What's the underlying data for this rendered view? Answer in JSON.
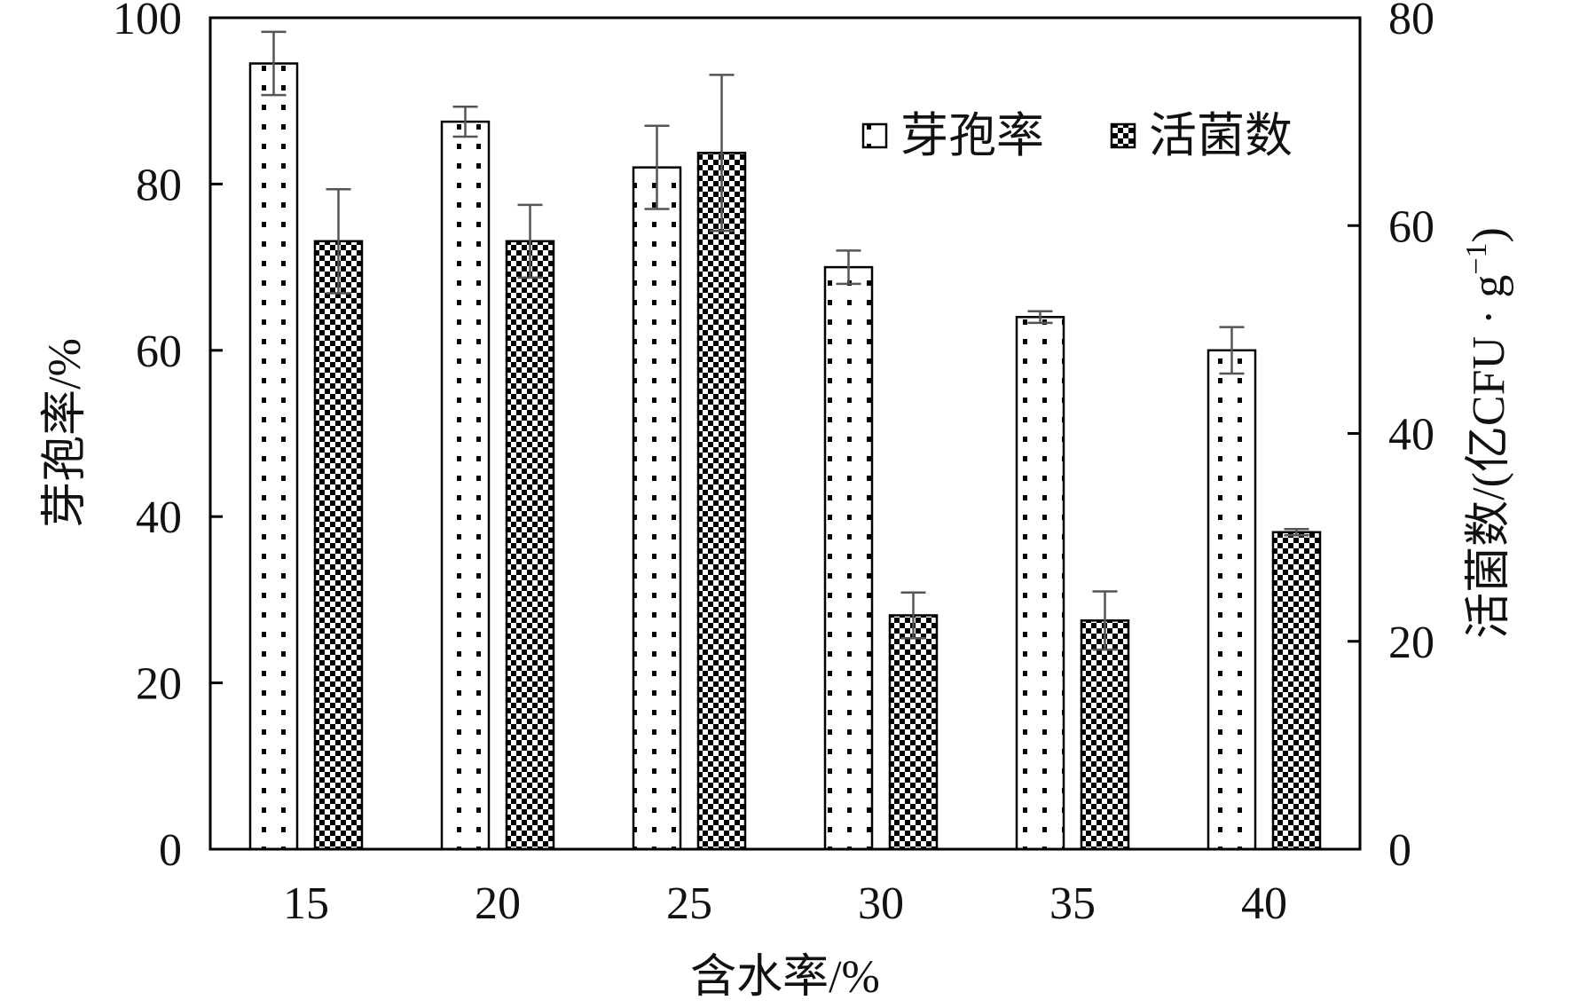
{
  "chart_data": {
    "type": "bar",
    "xlabel": "含水率/%",
    "ylabel": "芽孢率/%",
    "y2label": "活菌数/(亿CFU · g",
    "y2label_sup": "−1",
    "y2label_close": ")",
    "categories": [
      "15",
      "20",
      "25",
      "30",
      "35",
      "40"
    ],
    "ylim": [
      0,
      100
    ],
    "y2lim": [
      0,
      80
    ],
    "yticks": [
      "0",
      "20",
      "40",
      "60",
      "80",
      "100"
    ],
    "y2ticks": [
      "0",
      "20",
      "40",
      "60",
      "80"
    ],
    "legend_position": "top-right",
    "grid": false,
    "series": [
      {
        "name": "芽孢率",
        "axis": "left",
        "pattern": "dots",
        "values": [
          94.5,
          87.5,
          82.0,
          70.0,
          64.0,
          60.0
        ],
        "errors": [
          3.8,
          1.8,
          5.0,
          2.0,
          0.7,
          2.8
        ]
      },
      {
        "name": "活菌数",
        "axis": "right",
        "pattern": "checker",
        "values": [
          58.5,
          58.5,
          67.0,
          22.5,
          22.0,
          30.5
        ],
        "errors": [
          5.0,
          3.5,
          7.5,
          2.2,
          2.8,
          0.3
        ]
      }
    ]
  }
}
